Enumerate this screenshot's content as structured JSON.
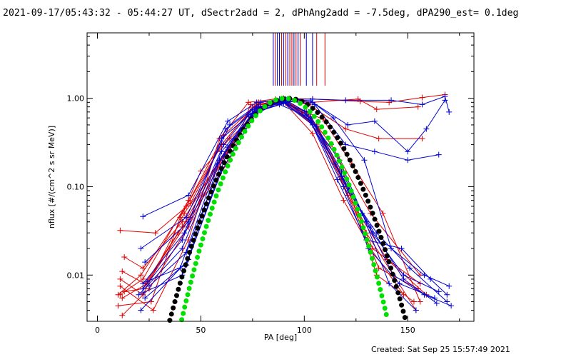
{
  "chart_data": {
    "type": "line",
    "title": "2021-09-17/05:43:32 - 05:44:27 UT, dSectr2add = 2, dPhAng2add = -7.5deg, dPA290_est=  0.1deg",
    "xlabel": "PA [deg]",
    "ylabel": "nflux [#/(cm^2 s sr MeV)]",
    "xlim": [
      -5,
      182
    ],
    "ylim": [
      0.003,
      5.5
    ],
    "yscale": "log",
    "x_ticks": [
      0,
      50,
      100,
      150
    ],
    "y_ticks": [
      {
        "value": 0.01,
        "label": "0.01"
      },
      {
        "value": 0.1,
        "label": "0.10"
      },
      {
        "value": 1,
        "label": "1.00"
      }
    ],
    "footer": "Created: Sat Sep 25 15:57:49 2021",
    "colors": {
      "red": "#e00000",
      "blue": "#0000d0",
      "black": "#000000",
      "green": "#00e000"
    },
    "peak_markers": {
      "red": [
        86,
        89,
        91,
        93,
        94,
        96,
        98,
        106,
        110
      ],
      "blue": [
        85,
        87,
        88,
        90,
        92,
        95,
        97,
        101,
        104
      ]
    },
    "series": [
      {
        "color": "red",
        "x": [
          11,
          22,
          44,
          50,
          64,
          80,
          90,
          101,
          113,
          132,
          156
        ],
        "y": [
          0.006,
          0.009,
          0.07,
          0.15,
          0.35,
          0.8,
          0.95,
          0.7,
          0.3,
          0.05,
          0.01
        ]
      },
      {
        "color": "red",
        "x": [
          12,
          24,
          45,
          63,
          79,
          90,
          104,
          127,
          141,
          157,
          168
        ],
        "y": [
          0.0055,
          0.008,
          0.045,
          0.25,
          0.85,
          1.0,
          0.98,
          0.92,
          0.9,
          1.02,
          1.1
        ]
      },
      {
        "color": "red",
        "x": [
          10,
          21,
          43,
          61,
          78,
          91,
          104,
          126,
          135,
          155
        ],
        "y": [
          0.006,
          0.01,
          0.06,
          0.38,
          0.9,
          0.98,
          0.9,
          0.98,
          0.75,
          0.8
        ]
      },
      {
        "color": "red",
        "x": [
          11,
          28,
          45,
          60,
          76,
          90,
          102,
          120,
          136,
          157
        ],
        "y": [
          0.032,
          0.03,
          0.065,
          0.3,
          0.82,
          0.97,
          0.85,
          0.45,
          0.35,
          0.35
        ]
      },
      {
        "color": "red",
        "x": [
          12,
          25,
          44,
          62,
          79,
          90,
          103,
          118,
          136,
          155
        ],
        "y": [
          0.0035,
          0.007,
          0.035,
          0.25,
          0.8,
          0.95,
          0.55,
          0.12,
          0.012,
          0.007
        ]
      },
      {
        "color": "red",
        "x": [
          13,
          22,
          41,
          59,
          76,
          91,
          106,
          121,
          135,
          153
        ],
        "y": [
          0.016,
          0.012,
          0.04,
          0.2,
          0.75,
          0.9,
          0.5,
          0.1,
          0.01,
          0.005
        ]
      },
      {
        "color": "red",
        "x": [
          11,
          22,
          42,
          61,
          78,
          89,
          103,
          117,
          133,
          156
        ],
        "y": [
          0.009,
          0.006,
          0.05,
          0.22,
          0.85,
          0.98,
          0.62,
          0.15,
          0.02,
          0.008
        ]
      },
      {
        "color": "red",
        "x": [
          10,
          26,
          40,
          60,
          75,
          91,
          107,
          121,
          140,
          159
        ],
        "y": [
          0.0045,
          0.005,
          0.045,
          0.3,
          0.78,
          0.88,
          0.45,
          0.08,
          0.015,
          0.006
        ]
      },
      {
        "color": "red",
        "x": [
          12,
          23,
          39,
          64,
          74,
          92,
          99,
          116,
          130,
          154
        ],
        "y": [
          0.011,
          0.008,
          0.03,
          0.2,
          0.85,
          0.92,
          0.68,
          0.22,
          0.03,
          0.004
        ]
      },
      {
        "color": "red",
        "x": [
          11,
          27,
          44,
          59,
          73,
          86,
          109,
          123,
          138,
          156
        ],
        "y": [
          0.0075,
          0.004,
          0.025,
          0.35,
          0.9,
          0.98,
          0.58,
          0.18,
          0.05,
          0.005
        ]
      },
      {
        "color": "red",
        "x": [
          13,
          22,
          41,
          63,
          77,
          89,
          104,
          119,
          132,
          148
        ],
        "y": [
          0.0065,
          0.007,
          0.035,
          0.28,
          0.78,
          0.96,
          0.4,
          0.07,
          0.02,
          0.006
        ]
      },
      {
        "color": "blue",
        "x": [
          22,
          44,
          63,
          77,
          91,
          103,
          114,
          129,
          142,
          158,
          170
        ],
        "y": [
          0.046,
          0.08,
          0.55,
          0.9,
          0.98,
          0.94,
          0.6,
          0.2,
          0.02,
          0.01,
          0.0075
        ]
      },
      {
        "color": "blue",
        "x": [
          21,
          43,
          64,
          79,
          90,
          104,
          120,
          142,
          157,
          168,
          170
        ],
        "y": [
          0.02,
          0.045,
          0.5,
          0.9,
          0.97,
          0.98,
          0.95,
          0.95,
          0.85,
          1.05,
          0.7
        ]
      },
      {
        "color": "blue",
        "x": [
          23,
          44,
          62,
          77,
          91,
          104,
          121,
          134,
          150,
          159,
          168
        ],
        "y": [
          0.014,
          0.04,
          0.45,
          0.8,
          0.92,
          0.9,
          0.5,
          0.55,
          0.25,
          0.45,
          0.95
        ]
      },
      {
        "color": "blue",
        "x": [
          22,
          42,
          60,
          78,
          91,
          105,
          120,
          134,
          150,
          165
        ],
        "y": [
          0.008,
          0.03,
          0.35,
          0.8,
          0.95,
          0.85,
          0.3,
          0.25,
          0.2,
          0.23
        ]
      },
      {
        "color": "blue",
        "x": [
          20,
          41,
          60,
          76,
          90,
          102,
          118,
          130,
          143,
          158,
          171
        ],
        "y": [
          0.006,
          0.02,
          0.25,
          0.7,
          0.88,
          0.7,
          0.15,
          0.04,
          0.01,
          0.006,
          0.0045
        ]
      },
      {
        "color": "blue",
        "x": [
          24,
          43,
          59,
          73,
          88,
          103,
          118,
          133,
          148,
          165
        ],
        "y": [
          0.0085,
          0.013,
          0.2,
          0.65,
          0.85,
          0.6,
          0.13,
          0.03,
          0.01,
          0.0065
        ]
      },
      {
        "color": "blue",
        "x": [
          22,
          41,
          61,
          75,
          90,
          103,
          116,
          130,
          147,
          161,
          169
        ],
        "y": [
          0.007,
          0.025,
          0.3,
          0.75,
          0.9,
          0.55,
          0.12,
          0.025,
          0.02,
          0.009,
          0.006
        ]
      },
      {
        "color": "blue",
        "x": [
          23,
          40,
          58,
          74,
          89,
          104,
          119,
          131,
          146,
          163
        ],
        "y": [
          0.0055,
          0.012,
          0.18,
          0.62,
          0.93,
          0.5,
          0.1,
          0.02,
          0.008,
          0.0055
        ]
      },
      {
        "color": "blue",
        "x": [
          21,
          44,
          62,
          76,
          91,
          100,
          117,
          128,
          141,
          154
        ],
        "y": [
          0.004,
          0.015,
          0.22,
          0.72,
          0.96,
          0.72,
          0.2,
          0.05,
          0.008,
          0.004
        ]
      },
      {
        "color": "blue",
        "x": [
          25,
          43,
          63,
          75,
          92,
          106,
          121,
          135,
          151,
          169
        ],
        "y": [
          0.0075,
          0.018,
          0.28,
          0.68,
          0.9,
          0.48,
          0.09,
          0.03,
          0.012,
          0.005
        ]
      },
      {
        "color": "blue",
        "x": [
          22,
          41,
          60,
          78,
          88,
          101,
          115,
          132,
          148,
          164
        ],
        "y": [
          0.0063,
          0.01,
          0.15,
          0.78,
          0.98,
          0.65,
          0.18,
          0.035,
          0.009,
          0.0048
        ]
      },
      {
        "color": "black",
        "dotted": true,
        "model": {
          "center": 92,
          "coef": 0.00178,
          "from": 25,
          "to": 158
        }
      },
      {
        "color": "green",
        "dotted": true,
        "model": {
          "center": 90.5,
          "coef": 0.00233,
          "from": 38,
          "to": 149
        }
      }
    ]
  }
}
